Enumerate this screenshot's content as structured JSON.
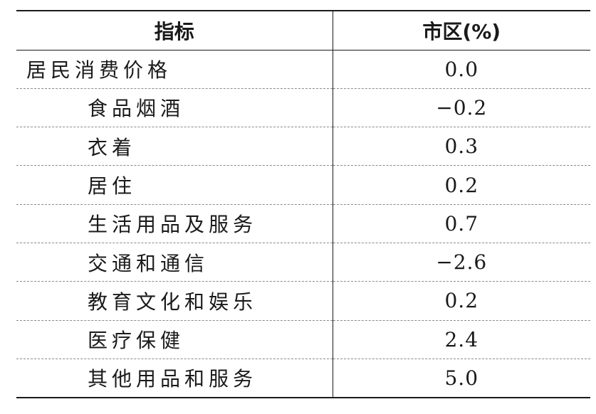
{
  "table": {
    "headers": [
      "指标",
      "市区(%)"
    ],
    "rows": [
      {
        "label": "居民消费价格",
        "value": "0.0"
      },
      {
        "label": "食品烟酒",
        "value": "−0.2"
      },
      {
        "label": "衣着",
        "value": "0.3"
      },
      {
        "label": "居住",
        "value": "0.2"
      },
      {
        "label": "生活用品及服务",
        "value": "0.7"
      },
      {
        "label": "交通和通信",
        "value": "−2.6"
      },
      {
        "label": "教育文化和娱乐",
        "value": "0.2"
      },
      {
        "label": "医疗保健",
        "value": "2.4"
      },
      {
        "label": "其他用品和服务",
        "value": "5.0"
      }
    ]
  }
}
